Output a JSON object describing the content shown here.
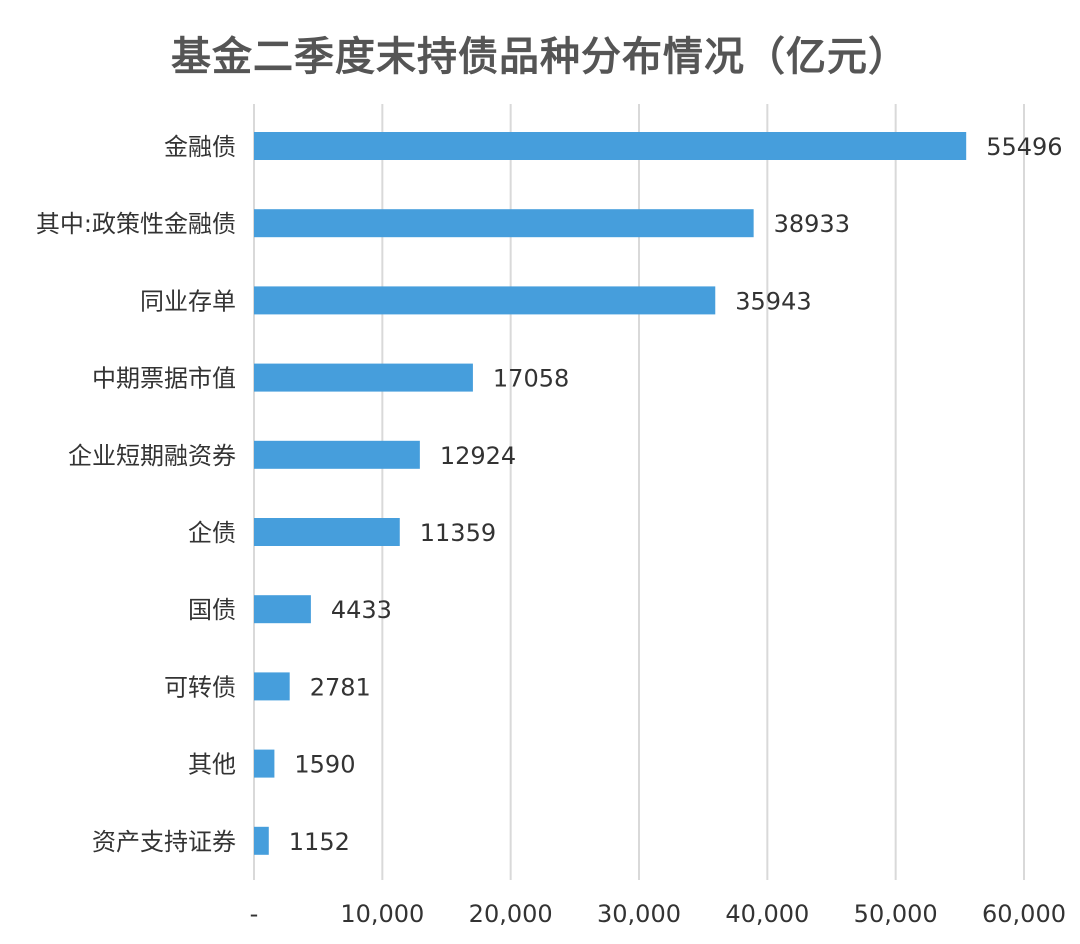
{
  "chart_data": {
    "type": "bar",
    "orientation": "horizontal",
    "title": "基金二季度末持债品种分布情况（亿元）",
    "xlabel": "",
    "ylabel": "",
    "categories": [
      "金融债",
      "其中:政策性金融债",
      "同业存单",
      "中期票据市值",
      "企业短期融资券",
      "企债",
      "国债",
      "可转债",
      "其他",
      "资产支持证券"
    ],
    "values": [
      55496,
      38933,
      35943,
      17058,
      12924,
      11359,
      4433,
      2781,
      1590,
      1152
    ],
    "xlim": [
      0,
      60000
    ],
    "x_ticks": [
      0,
      10000,
      20000,
      30000,
      40000,
      50000,
      60000
    ],
    "x_tick_labels": [
      "-",
      "10,000",
      "20,000",
      "30,000",
      "40,000",
      "50,000",
      "60,000"
    ],
    "grid": "vertical",
    "legend": "none",
    "bar_color": "#469EDC"
  }
}
